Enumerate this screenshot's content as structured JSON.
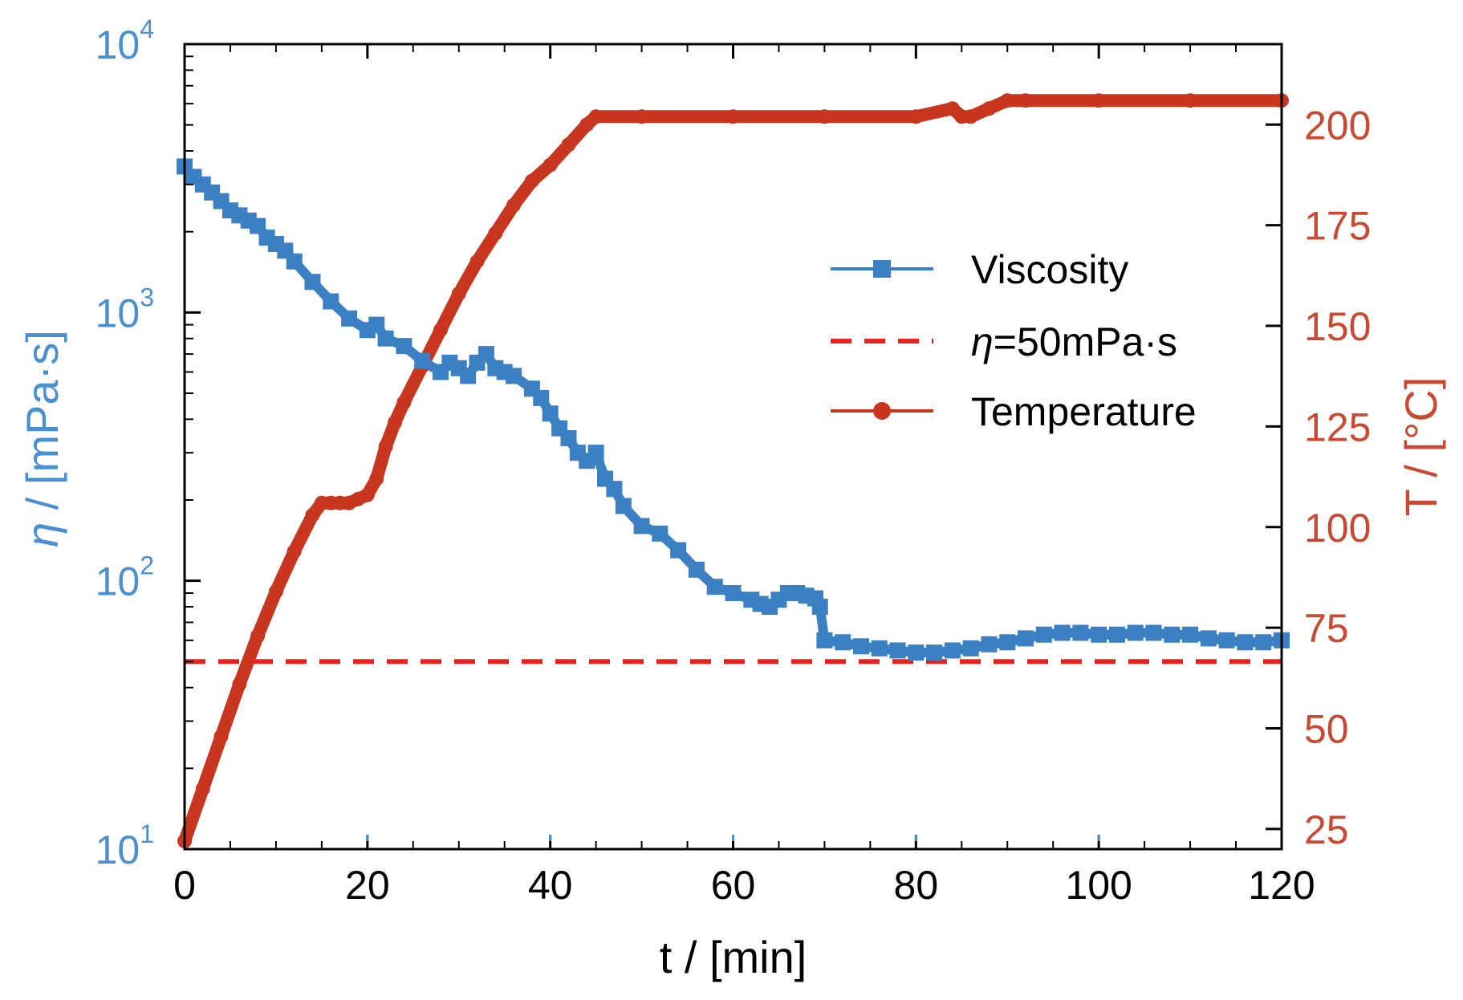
{
  "chart_data": {
    "type": "line",
    "x_label": "t / [min]",
    "y_left_label_symbol": "η",
    "y_left_label_unit": " / [mPa·s]",
    "y_right_label": "T / [°C]",
    "x_range": [
      0,
      120
    ],
    "y_left_range": [
      10,
      10000
    ],
    "y_left_scale": "log",
    "y_right_range": [
      20,
      220
    ],
    "x_ticks": [
      "0",
      "20",
      "40",
      "60",
      "80",
      "100",
      "120"
    ],
    "x_tick_values": [
      0,
      20,
      40,
      60,
      80,
      100,
      120
    ],
    "y_left_ticks": [
      {
        "base": "10",
        "exp": "1",
        "value": 10
      },
      {
        "base": "10",
        "exp": "2",
        "value": 100
      },
      {
        "base": "10",
        "exp": "3",
        "value": 1000
      },
      {
        "base": "10",
        "exp": "4",
        "value": 10000
      }
    ],
    "y_right_ticks": [
      "25",
      "50",
      "75",
      "100",
      "125",
      "150",
      "175",
      "200"
    ],
    "y_right_tick_values": [
      25,
      50,
      75,
      100,
      125,
      150,
      175,
      200
    ],
    "legend": {
      "position": "upper-right",
      "entries": [
        {
          "label": "Viscosity",
          "color": "#3a80c3",
          "marker": "square"
        },
        {
          "label_symbol": "η",
          "label_rest": "=50mPa·s",
          "color": "#e8231f",
          "style": "dashed"
        },
        {
          "label": "Temperature",
          "color": "#c8361f",
          "marker": "circle"
        }
      ]
    },
    "colors": {
      "viscosity": "#3a80c3",
      "threshold": "#e8231f",
      "temperature": "#c8361f",
      "left_axis": "#4a90d0",
      "right_axis": "#c84a32",
      "frame": "#000000"
    },
    "threshold_value": 50,
    "series": [
      {
        "name": "Viscosity",
        "axis": "left",
        "x": [
          0,
          1,
          2,
          3,
          4,
          5,
          6,
          7,
          8,
          9,
          10,
          11,
          12,
          14,
          16,
          18,
          20,
          21,
          22,
          24,
          26,
          28,
          29,
          30,
          31,
          32,
          33,
          34,
          35,
          36,
          38,
          39,
          40,
          41,
          42,
          43,
          44,
          45,
          46,
          47,
          48,
          50,
          52,
          54,
          56,
          58,
          60,
          62,
          63,
          64,
          65,
          66,
          67,
          68,
          69,
          69.5,
          70,
          72,
          74,
          76,
          78,
          80,
          82,
          84,
          86,
          88,
          90,
          92,
          94,
          96,
          98,
          100,
          102,
          104,
          106,
          108,
          110,
          112,
          114,
          116,
          118,
          120
        ],
        "y": [
          3500,
          3200,
          3000,
          2800,
          2600,
          2400,
          2300,
          2200,
          2100,
          1900,
          1800,
          1700,
          1550,
          1300,
          1100,
          950,
          860,
          900,
          800,
          750,
          660,
          600,
          650,
          620,
          580,
          650,
          700,
          620,
          600,
          580,
          520,
          480,
          420,
          370,
          340,
          300,
          280,
          300,
          240,
          220,
          190,
          160,
          150,
          130,
          110,
          95,
          90,
          85,
          82,
          80,
          85,
          90,
          90,
          88,
          86,
          80,
          60,
          59,
          57,
          56,
          55,
          54,
          54,
          55,
          56,
          58,
          59,
          61,
          63,
          64,
          64,
          63,
          63,
          64,
          64,
          63,
          63,
          61,
          60,
          59,
          59,
          60
        ]
      },
      {
        "name": "η=50mPa·s",
        "axis": "left",
        "x": [
          0,
          120
        ],
        "y": [
          50,
          50
        ]
      },
      {
        "name": "Temperature",
        "axis": "right",
        "x": [
          0,
          2,
          4,
          6,
          8,
          10,
          12,
          14,
          15,
          16,
          17,
          18,
          19,
          20,
          21,
          22,
          23,
          24,
          26,
          28,
          30,
          32,
          34,
          36,
          38,
          40,
          42,
          44,
          45,
          50,
          60,
          70,
          80,
          84,
          85,
          86,
          88,
          90,
          92,
          100,
          110,
          120
        ],
        "y": [
          22,
          35,
          48,
          61,
          73,
          84,
          94,
          103,
          106,
          106,
          106,
          106,
          107,
          108,
          112,
          120,
          126,
          131,
          140,
          149,
          158,
          166,
          173,
          180,
          186,
          190,
          195,
          200,
          202,
          202,
          202,
          202,
          202,
          204,
          202,
          202,
          204,
          206,
          206,
          206,
          206,
          206
        ]
      }
    ]
  }
}
